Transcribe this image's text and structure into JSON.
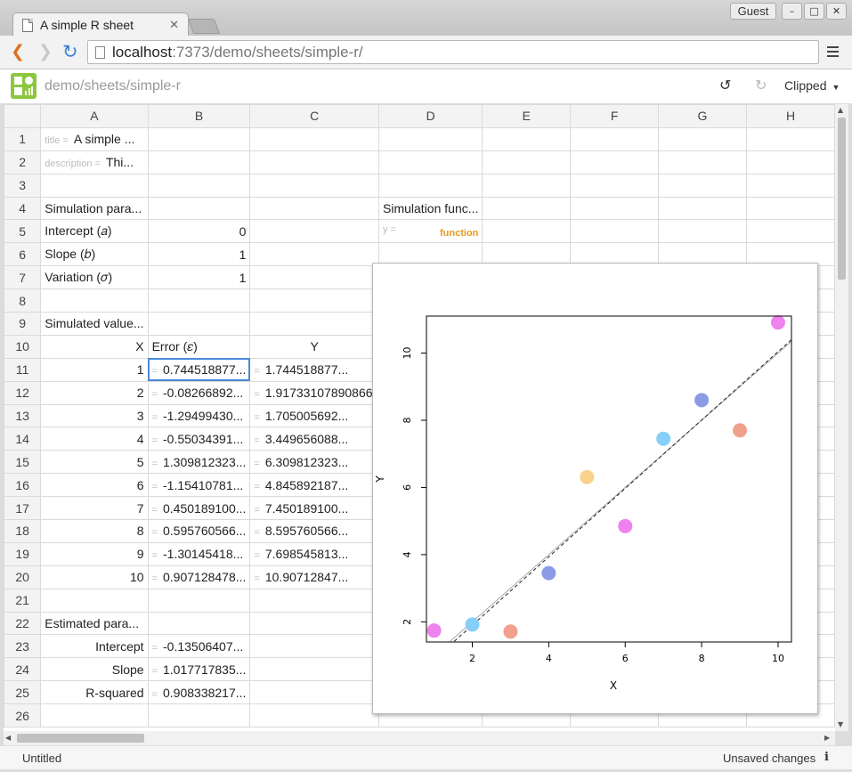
{
  "browser": {
    "tab_title": "A simple R sheet",
    "tab_close": "✕",
    "guest_label": "Guest",
    "url_host": "localhost",
    "url_rest": ":7373/demo/sheets/simple-r/"
  },
  "app": {
    "path": "demo/sheets/simple-r",
    "view_mode": "Clipped"
  },
  "grid": {
    "columns": [
      "A",
      "B",
      "C",
      "D",
      "E",
      "F",
      "G",
      "H"
    ],
    "rows": [
      {
        "n": "1",
        "a": "A simple ...",
        "a_label": "title =",
        "b": "",
        "c": "",
        "d": ""
      },
      {
        "n": "2",
        "a": "Thi...",
        "a_label": "description =",
        "b": "",
        "c": "",
        "d": ""
      },
      {
        "n": "3",
        "a": "",
        "b": "",
        "c": "",
        "d": ""
      },
      {
        "n": "4",
        "a": "Simulation para...",
        "b": "",
        "c": "",
        "d": "Simulation func..."
      },
      {
        "n": "5",
        "a": "Intercept (𝑎)",
        "b": "0",
        "c": "",
        "d": "function",
        "d_label": "y ="
      },
      {
        "n": "6",
        "a": "Slope (𝑏)",
        "b": "1",
        "c": "",
        "d": ""
      },
      {
        "n": "7",
        "a": "Variation (𝜎)",
        "b": "1",
        "c": "",
        "d": ""
      },
      {
        "n": "8",
        "a": "",
        "b": "",
        "c": "",
        "d": ""
      },
      {
        "n": "9",
        "a": "Simulated value...",
        "b": "",
        "c": "",
        "d": ""
      },
      {
        "n": "10",
        "a": "X",
        "b": "Error (𝜀)",
        "c": "Y",
        "d": ""
      },
      {
        "n": "11",
        "a": "1",
        "b": "0.744518877...",
        "c": "1.744518877...",
        "d": ""
      },
      {
        "n": "12",
        "a": "2",
        "b": "-0.08266892...",
        "c": "1.91733107890866",
        "d": ""
      },
      {
        "n": "13",
        "a": "3",
        "b": "-1.29499430...",
        "c": "1.705005692...",
        "d": ""
      },
      {
        "n": "14",
        "a": "4",
        "b": "-0.55034391...",
        "c": "3.449656088...",
        "d": ""
      },
      {
        "n": "15",
        "a": "5",
        "b": "1.309812323...",
        "c": "6.309812323...",
        "d": ""
      },
      {
        "n": "16",
        "a": "6",
        "b": "-1.15410781...",
        "c": "4.845892187...",
        "d": ""
      },
      {
        "n": "17",
        "a": "7",
        "b": "0.450189100...",
        "c": "7.450189100...",
        "d": ""
      },
      {
        "n": "18",
        "a": "8",
        "b": "0.595760566...",
        "c": "8.595760566...",
        "d": ""
      },
      {
        "n": "19",
        "a": "9",
        "b": "-1.30145418...",
        "c": "7.698545813...",
        "d": ""
      },
      {
        "n": "20",
        "a": "10",
        "b": "0.907128478...",
        "c": "10.90712847...",
        "d": ""
      },
      {
        "n": "21",
        "a": "",
        "b": "",
        "c": "",
        "d": ""
      },
      {
        "n": "22",
        "a": "Estimated para...",
        "b": "",
        "c": "",
        "d": ""
      },
      {
        "n": "23",
        "a": "Intercept",
        "b": "-0.13506407...",
        "c": "",
        "d": ""
      },
      {
        "n": "24",
        "a": "Slope",
        "b": "1.017717835...",
        "c": "",
        "d": ""
      },
      {
        "n": "25",
        "a": "R-squared",
        "b": "0.908338217...",
        "c": "",
        "d": ""
      },
      {
        "n": "26",
        "a": "",
        "b": "",
        "c": "",
        "d": ""
      }
    ]
  },
  "chart_data": {
    "type": "scatter",
    "xlabel": "X",
    "ylabel": "Y",
    "xlim": [
      0.8,
      10.35
    ],
    "ylim": [
      1.4,
      11.1
    ],
    "xticks": [
      2,
      4,
      6,
      8,
      10
    ],
    "yticks": [
      2,
      4,
      6,
      8,
      10
    ],
    "points": [
      {
        "x": 1,
        "y": 1.74,
        "color": "#ee82ee"
      },
      {
        "x": 2,
        "y": 1.92,
        "color": "#87cefa"
      },
      {
        "x": 3,
        "y": 1.71,
        "color": "#f0a08c"
      },
      {
        "x": 4,
        "y": 3.45,
        "color": "#8c9be6"
      },
      {
        "x": 5,
        "y": 6.31,
        "color": "#fad28c"
      },
      {
        "x": 6,
        "y": 4.85,
        "color": "#ee82ee"
      },
      {
        "x": 7,
        "y": 7.45,
        "color": "#87cefa"
      },
      {
        "x": 8,
        "y": 8.6,
        "color": "#8c9be6"
      },
      {
        "x": 9,
        "y": 7.7,
        "color": "#f0a08c"
      },
      {
        "x": 10,
        "y": 10.91,
        "color": "#ee82ee"
      }
    ],
    "lines": [
      {
        "intercept": 0,
        "slope": 1,
        "style": "solid",
        "color": "#aaaaaa"
      },
      {
        "intercept": -0.135,
        "slope": 1.0177,
        "style": "dashed",
        "color": "#222222"
      }
    ]
  },
  "status": {
    "document": "Untitled",
    "save_state": "Unsaved changes",
    "info_icon": "i"
  }
}
